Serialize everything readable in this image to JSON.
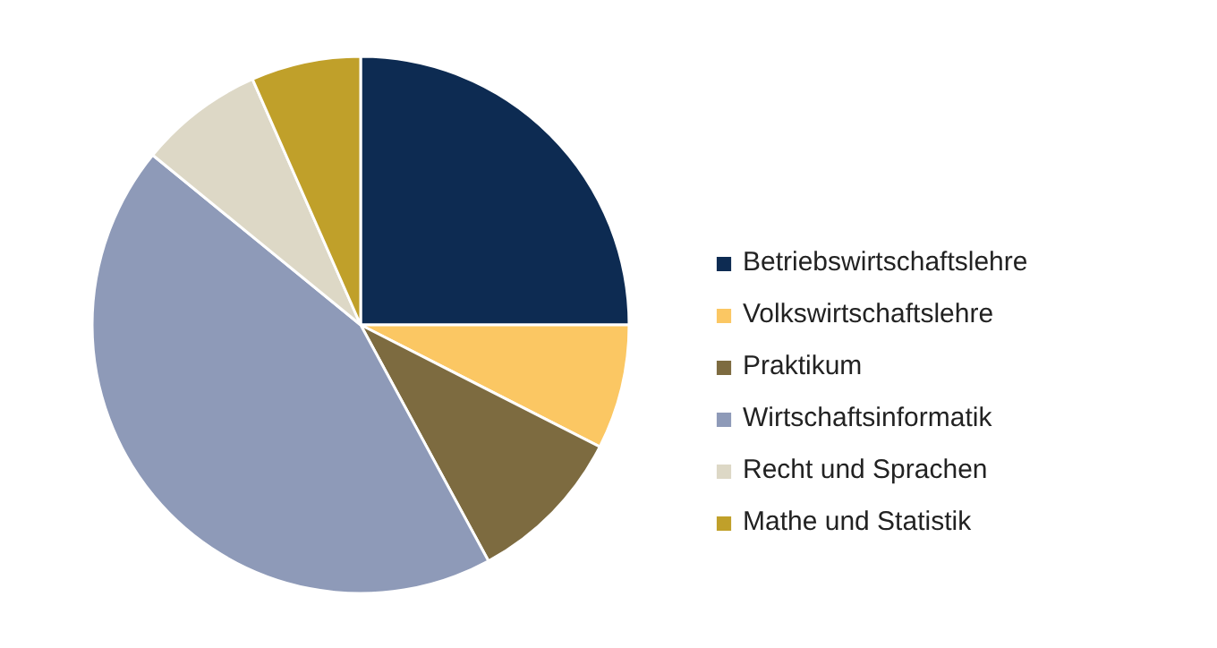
{
  "chart_data": {
    "type": "pie",
    "categories": [
      "Betriebswirtschaftslehre",
      "Volkswirtschaftslehre",
      "Praktikum",
      "Wirtschaftsinformatik",
      "Recht und Sprachen",
      "Mathe und Statistik"
    ],
    "values": [
      25,
      7.5,
      9.6,
      43.8,
      7.5,
      6.6
    ],
    "colors": [
      "#0d2b52",
      "#fbc763",
      "#7d6b40",
      "#8e9ab8",
      "#ddd8c6",
      "#c0a02a"
    ],
    "legend": "right"
  }
}
